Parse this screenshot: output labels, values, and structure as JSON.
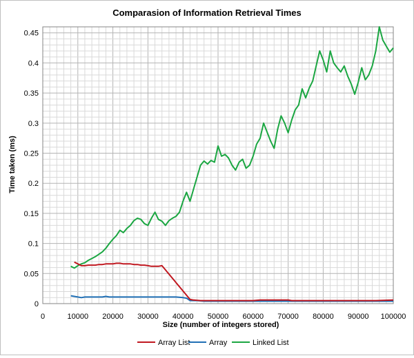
{
  "chart_data": {
    "type": "line",
    "title": "Comparasion of Information Retrieval Times",
    "xlabel": "Size (number of integers stored)",
    "ylabel": "Time taken (ms)",
    "xlim": [
      0,
      100000
    ],
    "ylim": [
      0,
      0.46
    ],
    "xticks": [
      0,
      10000,
      20000,
      30000,
      40000,
      50000,
      60000,
      70000,
      80000,
      90000,
      100000
    ],
    "yticks": [
      0,
      0.05,
      0.1,
      0.15,
      0.2,
      0.25,
      0.3,
      0.35,
      0.4,
      0.45
    ],
    "xtick_labels": [
      "0",
      "10000",
      "20000",
      "30000",
      "40000",
      "50000",
      "60000",
      "70000",
      "80000",
      "90000",
      "100000"
    ],
    "ytick_labels": [
      "0",
      "0.05",
      "0.1",
      "0.15",
      "0.2",
      "0.25",
      "0.3",
      "0.35",
      "0.4",
      "0.45"
    ],
    "grid": true,
    "legend_position": "bottom",
    "series": [
      {
        "name": "Array List",
        "color": "#c0171f",
        "points": [
          [
            9000,
            0.069
          ],
          [
            10000,
            0.066
          ],
          [
            11000,
            0.063
          ],
          [
            12000,
            0.063
          ],
          [
            13000,
            0.064
          ],
          [
            14000,
            0.064
          ],
          [
            15000,
            0.064
          ],
          [
            16000,
            0.065
          ],
          [
            17000,
            0.065
          ],
          [
            18000,
            0.066
          ],
          [
            19000,
            0.066
          ],
          [
            20000,
            0.066
          ],
          [
            21000,
            0.067
          ],
          [
            22000,
            0.067
          ],
          [
            23000,
            0.066
          ],
          [
            24000,
            0.066
          ],
          [
            25000,
            0.066
          ],
          [
            26000,
            0.065
          ],
          [
            27000,
            0.065
          ],
          [
            28000,
            0.064
          ],
          [
            29000,
            0.064
          ],
          [
            30000,
            0.063
          ],
          [
            31000,
            0.062
          ],
          [
            32000,
            0.062
          ],
          [
            33000,
            0.062
          ],
          [
            34000,
            0.063
          ],
          [
            42000,
            0.007
          ],
          [
            43000,
            0.006
          ],
          [
            45000,
            0.005
          ],
          [
            50000,
            0.005
          ],
          [
            55000,
            0.005
          ],
          [
            60000,
            0.005
          ],
          [
            62000,
            0.006
          ],
          [
            65000,
            0.006
          ],
          [
            70000,
            0.006
          ],
          [
            71000,
            0.005
          ],
          [
            75000,
            0.005
          ],
          [
            80000,
            0.005
          ],
          [
            85000,
            0.005
          ],
          [
            90000,
            0.005
          ],
          [
            95000,
            0.005
          ],
          [
            100000,
            0.006
          ]
        ]
      },
      {
        "name": "Array",
        "color": "#1f6fb5",
        "points": [
          [
            8000,
            0.013
          ],
          [
            9000,
            0.012
          ],
          [
            10000,
            0.011
          ],
          [
            11000,
            0.01
          ],
          [
            12000,
            0.011
          ],
          [
            13000,
            0.011
          ],
          [
            14000,
            0.011
          ],
          [
            15000,
            0.011
          ],
          [
            16000,
            0.011
          ],
          [
            17000,
            0.011
          ],
          [
            18000,
            0.012
          ],
          [
            19000,
            0.011
          ],
          [
            20000,
            0.011
          ],
          [
            22000,
            0.011
          ],
          [
            24000,
            0.011
          ],
          [
            26000,
            0.011
          ],
          [
            28000,
            0.011
          ],
          [
            30000,
            0.011
          ],
          [
            32000,
            0.011
          ],
          [
            34000,
            0.011
          ],
          [
            36000,
            0.011
          ],
          [
            38000,
            0.011
          ],
          [
            40000,
            0.01
          ],
          [
            41000,
            0.009
          ],
          [
            42000,
            0.005
          ],
          [
            44000,
            0.005
          ],
          [
            46000,
            0.004
          ],
          [
            50000,
            0.004
          ],
          [
            55000,
            0.004
          ],
          [
            60000,
            0.004
          ],
          [
            65000,
            0.004
          ],
          [
            70000,
            0.004
          ],
          [
            75000,
            0.004
          ],
          [
            80000,
            0.004
          ],
          [
            85000,
            0.004
          ],
          [
            90000,
            0.004
          ],
          [
            95000,
            0.004
          ],
          [
            100000,
            0.004
          ]
        ]
      },
      {
        "name": "Linked List",
        "color": "#1aa641",
        "points": [
          [
            8000,
            0.062
          ],
          [
            9000,
            0.059
          ],
          [
            10000,
            0.063
          ],
          [
            11000,
            0.066
          ],
          [
            12000,
            0.068
          ],
          [
            13000,
            0.072
          ],
          [
            14000,
            0.075
          ],
          [
            15000,
            0.078
          ],
          [
            16000,
            0.082
          ],
          [
            17000,
            0.086
          ],
          [
            18000,
            0.092
          ],
          [
            19000,
            0.1
          ],
          [
            20000,
            0.107
          ],
          [
            21000,
            0.113
          ],
          [
            22000,
            0.122
          ],
          [
            23000,
            0.118
          ],
          [
            24000,
            0.125
          ],
          [
            25000,
            0.13
          ],
          [
            26000,
            0.138
          ],
          [
            27000,
            0.142
          ],
          [
            28000,
            0.14
          ],
          [
            29000,
            0.133
          ],
          [
            30000,
            0.13
          ],
          [
            31000,
            0.142
          ],
          [
            32000,
            0.152
          ],
          [
            33000,
            0.14
          ],
          [
            34000,
            0.137
          ],
          [
            35000,
            0.13
          ],
          [
            36000,
            0.138
          ],
          [
            37000,
            0.142
          ],
          [
            38000,
            0.145
          ],
          [
            39000,
            0.152
          ],
          [
            40000,
            0.17
          ],
          [
            41000,
            0.185
          ],
          [
            42000,
            0.17
          ],
          [
            43000,
            0.19
          ],
          [
            44000,
            0.21
          ],
          [
            45000,
            0.23
          ],
          [
            46000,
            0.237
          ],
          [
            47000,
            0.232
          ],
          [
            48000,
            0.238
          ],
          [
            49000,
            0.235
          ],
          [
            50000,
            0.262
          ],
          [
            51000,
            0.245
          ],
          [
            52000,
            0.248
          ],
          [
            53000,
            0.242
          ],
          [
            54000,
            0.23
          ],
          [
            55000,
            0.222
          ],
          [
            56000,
            0.235
          ],
          [
            57000,
            0.24
          ],
          [
            58000,
            0.225
          ],
          [
            59000,
            0.23
          ],
          [
            60000,
            0.245
          ],
          [
            61000,
            0.265
          ],
          [
            62000,
            0.275
          ],
          [
            63000,
            0.3
          ],
          [
            64000,
            0.285
          ],
          [
            65000,
            0.27
          ],
          [
            66000,
            0.258
          ],
          [
            67000,
            0.29
          ],
          [
            68000,
            0.312
          ],
          [
            69000,
            0.3
          ],
          [
            70000,
            0.284
          ],
          [
            71000,
            0.305
          ],
          [
            72000,
            0.322
          ],
          [
            73000,
            0.33
          ],
          [
            74000,
            0.357
          ],
          [
            75000,
            0.342
          ],
          [
            76000,
            0.358
          ],
          [
            77000,
            0.37
          ],
          [
            78000,
            0.395
          ],
          [
            79000,
            0.42
          ],
          [
            80000,
            0.405
          ],
          [
            81000,
            0.385
          ],
          [
            82000,
            0.42
          ],
          [
            83000,
            0.4
          ],
          [
            84000,
            0.392
          ],
          [
            85000,
            0.385
          ],
          [
            86000,
            0.395
          ],
          [
            87000,
            0.378
          ],
          [
            88000,
            0.365
          ],
          [
            89000,
            0.348
          ],
          [
            90000,
            0.368
          ],
          [
            91000,
            0.392
          ],
          [
            92000,
            0.372
          ],
          [
            93000,
            0.38
          ],
          [
            94000,
            0.395
          ],
          [
            95000,
            0.42
          ],
          [
            96000,
            0.46
          ],
          [
            97000,
            0.438
          ],
          [
            98000,
            0.428
          ],
          [
            99000,
            0.418
          ],
          [
            100000,
            0.425
          ]
        ]
      }
    ]
  }
}
